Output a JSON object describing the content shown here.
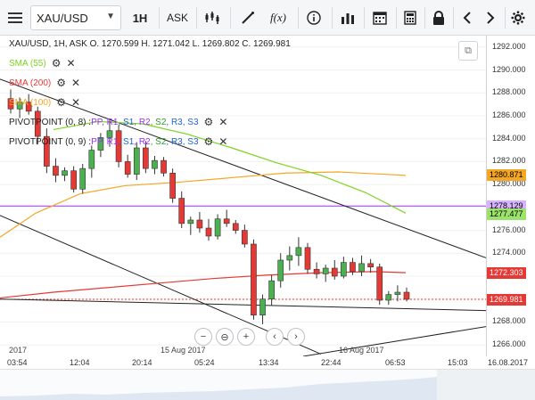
{
  "toolbar": {
    "symbol": "XAU/USD",
    "timeframe": "1H",
    "price_type": "ASK",
    "fx_label": "f(x)"
  },
  "header": {
    "summary": "XAU/USD, 1H, ASK   O. 1270.599 H. 1271.042 L. 1269.802 C. 1269.981"
  },
  "indicators": [
    {
      "label": "SMA (55)",
      "color": "#7ed321"
    },
    {
      "label": "SMA (200)",
      "color": "#e53935"
    },
    {
      "label": "SMA (100)",
      "color": "#f5a623"
    },
    {
      "label_prefix": "PIVOTPOINT (0, 8)",
      "parts": [
        "PP",
        "R1",
        "S1",
        "R2",
        "S2",
        "R3",
        "S3"
      ]
    },
    {
      "label_prefix": "PIVOTPOINT (0, 9)",
      "parts": [
        "PP",
        "R1",
        "S1",
        "R2",
        "S2",
        "R3",
        "S3"
      ]
    }
  ],
  "pivot_colors": {
    "PP": "#9b30ff",
    "R1": "#9b30ff",
    "S1": "#1e63d6",
    "R2": "#9b30ff",
    "S2": "#2e9b2e",
    "R3": "#1e63d6",
    "S3": "#1e63d6"
  },
  "price_axis": {
    "ticks": [
      "1292.000",
      "1290.000",
      "1288.000",
      "1286.000",
      "1284.000",
      "1282.000",
      "1280.000",
      "1278.000",
      "1276.000",
      "1274.000",
      "1272.000",
      "1270.000",
      "1268.000",
      "1266.000"
    ],
    "tags": [
      {
        "value": "1280.871",
        "bg": "#f5a623"
      },
      {
        "value": "1278.129",
        "bg": "#d7b2ff"
      },
      {
        "value": "1277.477",
        "bg": "#9be36b"
      },
      {
        "value": "1272.303",
        "bg": "#e53935",
        "fg": "#ffffff"
      },
      {
        "value": "1269.981",
        "bg": "#e53935",
        "fg": "#ffffff"
      }
    ]
  },
  "time_axis": {
    "ticks": [
      "03:54",
      "12:04",
      "20:14",
      "05:24",
      "13:34",
      "22:44",
      "06:53",
      "15:03"
    ],
    "dates": [
      "2017",
      "15 Aug 2017",
      "16 Aug 2017"
    ],
    "right_date": "16.08.2017"
  },
  "chart_data": {
    "type": "candlestick",
    "ylim": [
      1265,
      1293
    ],
    "candles": [
      [
        1287.5,
        1288.3,
        1286.2,
        1286.6
      ],
      [
        1286.6,
        1287.6,
        1285.8,
        1287.2
      ],
      [
        1287.2,
        1287.9,
        1286.1,
        1286.4
      ],
      [
        1286.4,
        1286.8,
        1283.5,
        1284.2
      ],
      [
        1284.2,
        1284.9,
        1281.0,
        1281.6
      ],
      [
        1281.6,
        1282.3,
        1280.2,
        1280.8
      ],
      [
        1280.8,
        1281.5,
        1280.3,
        1281.2
      ],
      [
        1281.2,
        1281.6,
        1279.3,
        1279.6
      ],
      [
        1279.6,
        1281.8,
        1279.2,
        1281.4
      ],
      [
        1281.4,
        1283.4,
        1280.6,
        1283.0
      ],
      [
        1283.0,
        1284.5,
        1282.4,
        1284.1
      ],
      [
        1284.1,
        1285.6,
        1283.3,
        1284.7
      ],
      [
        1284.7,
        1285.2,
        1281.5,
        1282.0
      ],
      [
        1282.0,
        1282.6,
        1280.6,
        1280.9
      ],
      [
        1280.9,
        1283.7,
        1280.4,
        1283.2
      ],
      [
        1283.2,
        1283.8,
        1281.0,
        1281.4
      ],
      [
        1281.4,
        1282.5,
        1280.9,
        1282.1
      ],
      [
        1282.1,
        1282.4,
        1280.7,
        1281.0
      ],
      [
        1281.0,
        1281.4,
        1278.4,
        1278.8
      ],
      [
        1278.8,
        1279.4,
        1276.2,
        1276.6
      ],
      [
        1276.6,
        1277.2,
        1275.6,
        1276.9
      ],
      [
        1276.9,
        1277.6,
        1275.8,
        1276.2
      ],
      [
        1276.2,
        1277.0,
        1275.1,
        1275.5
      ],
      [
        1275.5,
        1277.4,
        1275.2,
        1277.0
      ],
      [
        1277.0,
        1277.8,
        1276.3,
        1276.6
      ],
      [
        1276.6,
        1276.9,
        1275.7,
        1276.0
      ],
      [
        1276.0,
        1276.5,
        1274.5,
        1274.8
      ],
      [
        1274.8,
        1275.2,
        1268.2,
        1268.6
      ],
      [
        1268.6,
        1270.4,
        1267.8,
        1270.0
      ],
      [
        1270.0,
        1272.1,
        1269.4,
        1271.6
      ],
      [
        1271.6,
        1274.0,
        1271.0,
        1273.4
      ],
      [
        1273.4,
        1274.6,
        1272.5,
        1273.8
      ],
      [
        1273.8,
        1275.4,
        1272.9,
        1274.5
      ],
      [
        1274.5,
        1274.9,
        1272.2,
        1272.6
      ],
      [
        1272.6,
        1273.2,
        1271.8,
        1272.2
      ],
      [
        1272.2,
        1273.0,
        1271.5,
        1272.7
      ],
      [
        1272.7,
        1273.4,
        1271.7,
        1272.0
      ],
      [
        1272.0,
        1273.7,
        1271.8,
        1273.2
      ],
      [
        1273.2,
        1273.6,
        1272.1,
        1272.4
      ],
      [
        1272.4,
        1273.8,
        1272.0,
        1273.1
      ],
      [
        1273.1,
        1273.5,
        1272.3,
        1272.8
      ],
      [
        1272.8,
        1273.1,
        1269.5,
        1269.9
      ],
      [
        1269.9,
        1270.7,
        1269.5,
        1270.4
      ],
      [
        1270.4,
        1271.2,
        1269.8,
        1270.6
      ],
      [
        1270.6,
        1271.0,
        1269.8,
        1269.981
      ]
    ]
  }
}
